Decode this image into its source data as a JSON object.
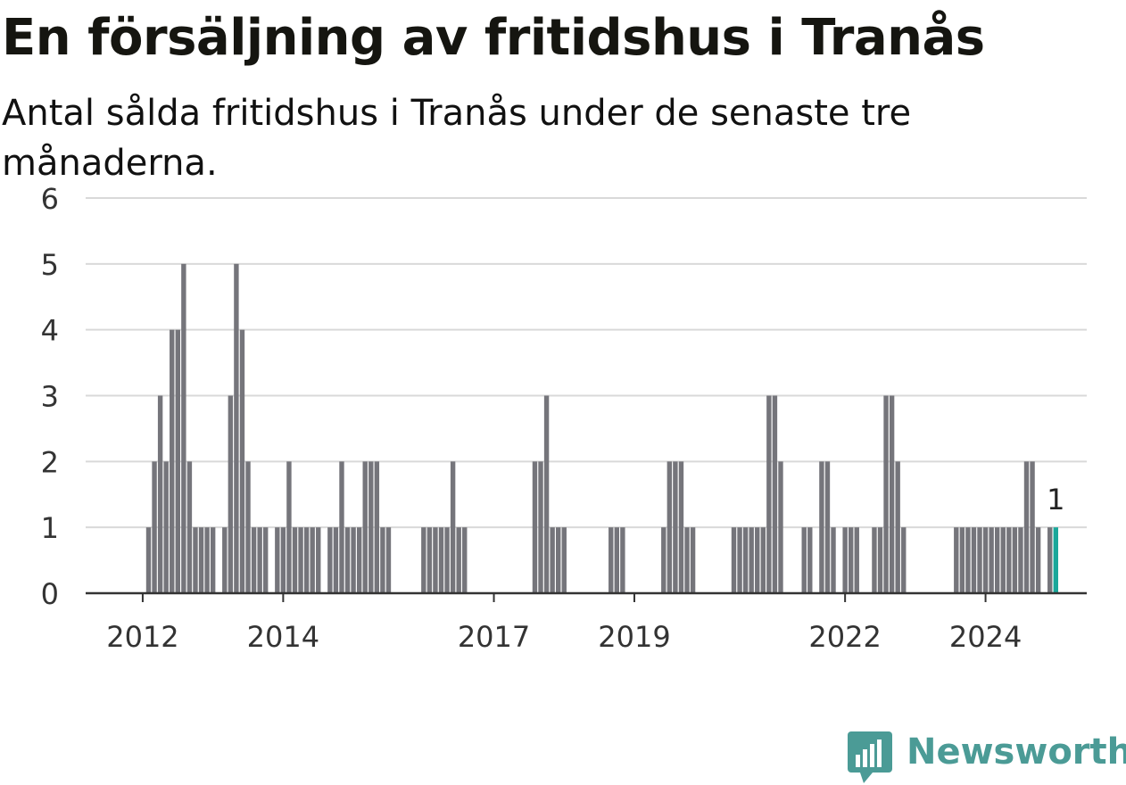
{
  "title": "En försäljning av fritidshus i Tranås",
  "subtitle": "Antal sålda fritidshus i Tranås under de senaste tre månaderna.",
  "brand": {
    "name": "Newsworthy",
    "icon": "newsworthy-logo-icon",
    "color": "#4b9b96"
  },
  "colors": {
    "bar": "#75757b",
    "highlight": "#1aa79a",
    "grid": "#d9d9d9",
    "axis": "#333333"
  },
  "chart_data": {
    "type": "bar",
    "title": "En försäljning av fritidshus i Tranås",
    "subtitle": "Antal sålda fritidshus i Tranås under de senaste tre månaderna.",
    "xlabel": "",
    "ylabel": "",
    "ylim": [
      0,
      6
    ],
    "yticks": [
      "0",
      "1",
      "2",
      "3",
      "4",
      "5",
      "6"
    ],
    "grid": true,
    "legend": "none",
    "xticks": [
      {
        "label": "2012",
        "month": 9
      },
      {
        "label": "2014",
        "month": 33
      },
      {
        "label": "2017",
        "month": 69
      },
      {
        "label": "2019",
        "month": 93
      },
      {
        "label": "2022",
        "month": 129
      },
      {
        "label": "2024",
        "month": 153
      }
    ],
    "first_month": "2011-01",
    "values": [
      0,
      0,
      0,
      0,
      0,
      0,
      0,
      0,
      0,
      0,
      1,
      2,
      3,
      2,
      4,
      4,
      5,
      2,
      1,
      1,
      1,
      1,
      0,
      1,
      3,
      5,
      4,
      2,
      1,
      1,
      1,
      0,
      1,
      1,
      2,
      1,
      1,
      1,
      1,
      1,
      0,
      1,
      1,
      2,
      1,
      1,
      1,
      2,
      2,
      2,
      1,
      1,
      0,
      0,
      0,
      0,
      0,
      1,
      1,
      1,
      1,
      1,
      2,
      1,
      1,
      0,
      0,
      0,
      0,
      0,
      0,
      0,
      0,
      0,
      0,
      0,
      2,
      2,
      3,
      1,
      1,
      1,
      0,
      0,
      0,
      0,
      0,
      0,
      0,
      1,
      1,
      1,
      0,
      0,
      0,
      0,
      0,
      0,
      1,
      2,
      2,
      2,
      1,
      1,
      0,
      0,
      0,
      0,
      0,
      0,
      1,
      1,
      1,
      1,
      1,
      1,
      3,
      3,
      2,
      0,
      0,
      0,
      1,
      1,
      0,
      2,
      2,
      1,
      0,
      1,
      1,
      1,
      0,
      0,
      1,
      1,
      3,
      3,
      2,
      1,
      0,
      0,
      0,
      0,
      0,
      0,
      0,
      0,
      1,
      1,
      1,
      1,
      1,
      1,
      1,
      1,
      1,
      1,
      1,
      1,
      2,
      2,
      1,
      0,
      1,
      1
    ],
    "highlight_index": 165,
    "highlight_label": "1"
  }
}
